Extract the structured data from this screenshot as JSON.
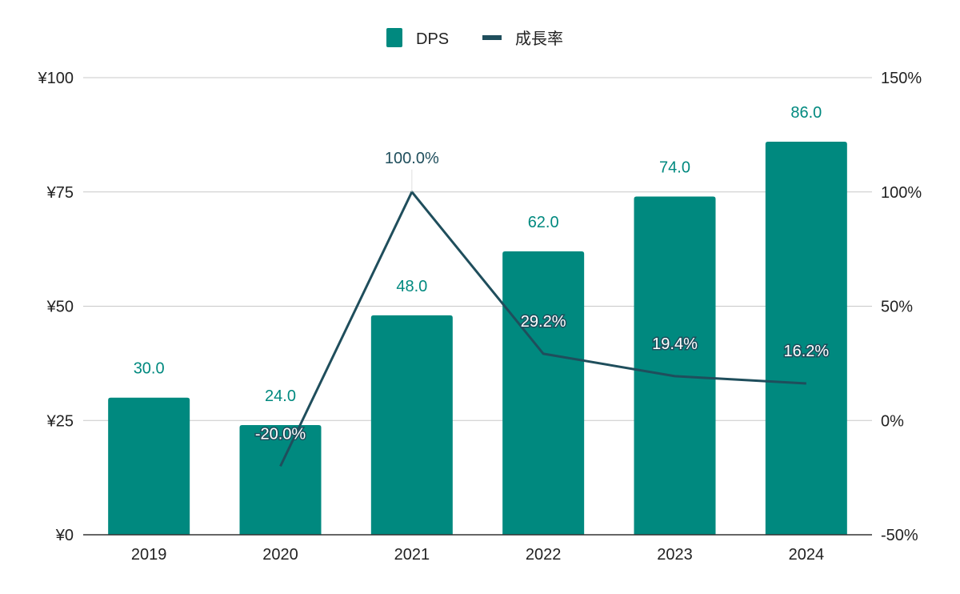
{
  "chart_data": {
    "type": "bar",
    "categories": [
      "2019",
      "2020",
      "2021",
      "2022",
      "2023",
      "2024"
    ],
    "series": [
      {
        "name": "DPS",
        "type": "bar",
        "axis": "left",
        "values": [
          30.0,
          24.0,
          48.0,
          62.0,
          74.0,
          86.0
        ],
        "labels": [
          "30.0",
          "24.0",
          "48.0",
          "62.0",
          "74.0",
          "86.0"
        ],
        "color": "#00897f"
      },
      {
        "name": "成長率",
        "type": "line",
        "axis": "right",
        "values": [
          null,
          -20.0,
          100.0,
          29.2,
          19.4,
          16.2
        ],
        "labels": [
          "",
          "-20.0%",
          "100.0%",
          "29.2%",
          "19.4%",
          "16.2%"
        ],
        "color": "#1f4e5c"
      }
    ],
    "y_left": {
      "ylim": [
        0,
        100
      ],
      "ticks": [
        0,
        25,
        50,
        75,
        100
      ],
      "tick_labels": [
        "¥0",
        "¥25",
        "¥50",
        "¥75",
        "¥100"
      ]
    },
    "y_right": {
      "ylim": [
        -50,
        150
      ],
      "ticks": [
        -50,
        0,
        50,
        100,
        150
      ],
      "tick_labels": [
        "-50%",
        "0%",
        "50%",
        "100%",
        "150%"
      ]
    },
    "grid": true,
    "legend": "top-center"
  }
}
